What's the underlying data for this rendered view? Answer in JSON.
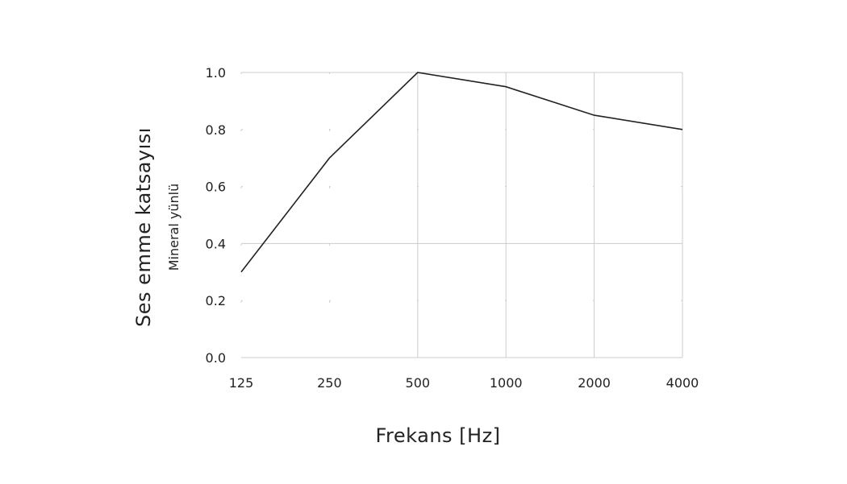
{
  "chart_data": {
    "type": "line",
    "x_scale": "log2",
    "categories": [
      "125",
      "250",
      "500",
      "1000",
      "2000",
      "4000"
    ],
    "x": [
      125,
      250,
      500,
      1000,
      2000,
      4000
    ],
    "series": [
      {
        "name": "Mineral yünlü",
        "values": [
          0.3,
          0.7,
          1.0,
          0.95,
          0.85,
          0.8
        ]
      }
    ],
    "xlabel": "Frekans [Hz]",
    "ylabel": "Ses emme katsayısı",
    "ylim": [
      0,
      1.0
    ],
    "yticks": [
      "0.0",
      "0.2",
      "0.4",
      "0.6",
      "0.8",
      "1.0"
    ],
    "ytick_values": [
      0,
      0.2,
      0.4,
      0.6,
      0.8,
      1.0
    ],
    "grid": true,
    "colors": {
      "line": "#222222",
      "grid": "#cccccc"
    }
  }
}
